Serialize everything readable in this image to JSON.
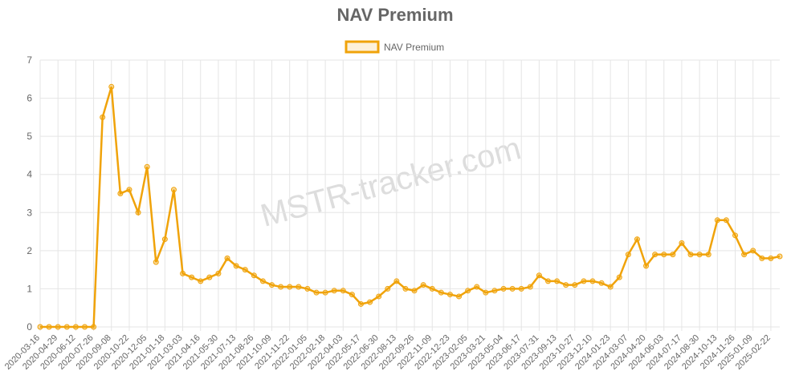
{
  "chart_data": {
    "type": "line",
    "title": "NAV Premium",
    "watermark": "MSTR-tracker.com",
    "categories": [
      "2020-03-16",
      null,
      "2020-04-29",
      null,
      "2020-06-12",
      null,
      "2020-07-26",
      null,
      "2020-09-08",
      null,
      "2020-10-22",
      null,
      "2020-12-05",
      null,
      "2021-01-18",
      null,
      "2021-03-03",
      null,
      "2021-04-16",
      null,
      "2021-05-30",
      null,
      "2021-07-13",
      null,
      "2021-08-26",
      null,
      "2021-10-09",
      null,
      "2021-11-22",
      null,
      "2022-01-05",
      null,
      "2022-02-18",
      null,
      "2022-04-03",
      null,
      "2022-05-17",
      null,
      "2022-06-30",
      null,
      "2022-08-13",
      null,
      "2022-09-26",
      null,
      "2022-11-09",
      null,
      "2022-12-23",
      null,
      "2023-02-05",
      null,
      "2023-03-21",
      null,
      "2023-05-04",
      null,
      "2023-06-17",
      null,
      "2023-07-31",
      null,
      "2023-09-13",
      null,
      "2023-10-27",
      null,
      "2023-12-10",
      null,
      "2024-01-23",
      null,
      "2024-03-07",
      null,
      "2024-04-20",
      null,
      "2024-06-03",
      null,
      "2024-07-17",
      null,
      "2024-08-30",
      null,
      "2024-10-13",
      null,
      "2024-11-26",
      null,
      "2025-01-09",
      null,
      "2025-02-22",
      null
    ],
    "series": [
      {
        "name": "NAV Premium",
        "color": "#f0a30a",
        "values": [
          0,
          0,
          0,
          0,
          0,
          0,
          0,
          5.5,
          6.3,
          3.5,
          3.6,
          3.0,
          4.2,
          1.7,
          2.3,
          3.6,
          1.4,
          1.3,
          1.2,
          1.3,
          1.4,
          1.8,
          1.6,
          1.5,
          1.35,
          1.2,
          1.1,
          1.05,
          1.05,
          1.05,
          1.0,
          0.9,
          0.9,
          0.95,
          0.95,
          0.85,
          0.6,
          0.65,
          0.8,
          1.0,
          1.2,
          1.0,
          0.95,
          1.1,
          1.0,
          0.9,
          0.85,
          0.8,
          0.95,
          1.05,
          0.9,
          0.95,
          1.0,
          1.0,
          1.0,
          1.05,
          1.35,
          1.2,
          1.2,
          1.1,
          1.1,
          1.2,
          1.2,
          1.15,
          1.05,
          1.3,
          1.9,
          2.3,
          1.6,
          1.9,
          1.9,
          1.9,
          2.2,
          1.9,
          1.9,
          1.9,
          2.8,
          2.8,
          2.4,
          1.9,
          2.0,
          1.8,
          1.8,
          1.85
        ]
      }
    ],
    "ylim": [
      0,
      7
    ],
    "yticks": [
      0,
      1,
      2,
      3,
      4,
      5,
      6,
      7
    ],
    "grid": true,
    "legend": "top"
  }
}
